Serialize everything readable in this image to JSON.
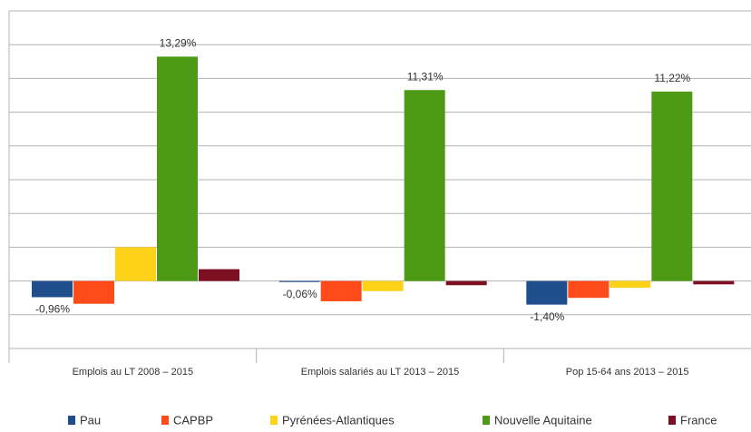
{
  "chart_data": {
    "type": "bar",
    "categories": [
      "Emplois au LT 2008 – 2015",
      "Emplois salariés au LT 2013 – 2015",
      "Pop 15-64 ans 2013 – 2015"
    ],
    "series": [
      {
        "name": "Pau",
        "color": "#1f4e8c",
        "values": [
          -0.96,
          -0.06,
          -1.4
        ],
        "value_labels": [
          "-0,96%",
          "-0,06%",
          "-1,40%"
        ]
      },
      {
        "name": "CAPBP",
        "color": "#ff4a1a",
        "values": [
          -1.35,
          -1.2,
          -1.0
        ]
      },
      {
        "name": "Pyrénées-Atlantiques",
        "color": "#ffd21a",
        "values": [
          2.0,
          -0.6,
          -0.4
        ]
      },
      {
        "name": "Nouvelle Aquitaine",
        "color": "#4c9a16",
        "values": [
          13.29,
          11.31,
          11.22
        ],
        "value_labels": [
          "13,29%",
          "11,31%",
          "11,22%"
        ]
      },
      {
        "name": "France",
        "color": "#7d0f22",
        "values": [
          0.7,
          -0.25,
          -0.2
        ]
      }
    ],
    "ylim": [
      -4,
      16
    ],
    "yticks": [
      -4,
      -2,
      0,
      2,
      4,
      6,
      8,
      10,
      12,
      14,
      16
    ],
    "grid": true,
    "legend": "bottom"
  }
}
